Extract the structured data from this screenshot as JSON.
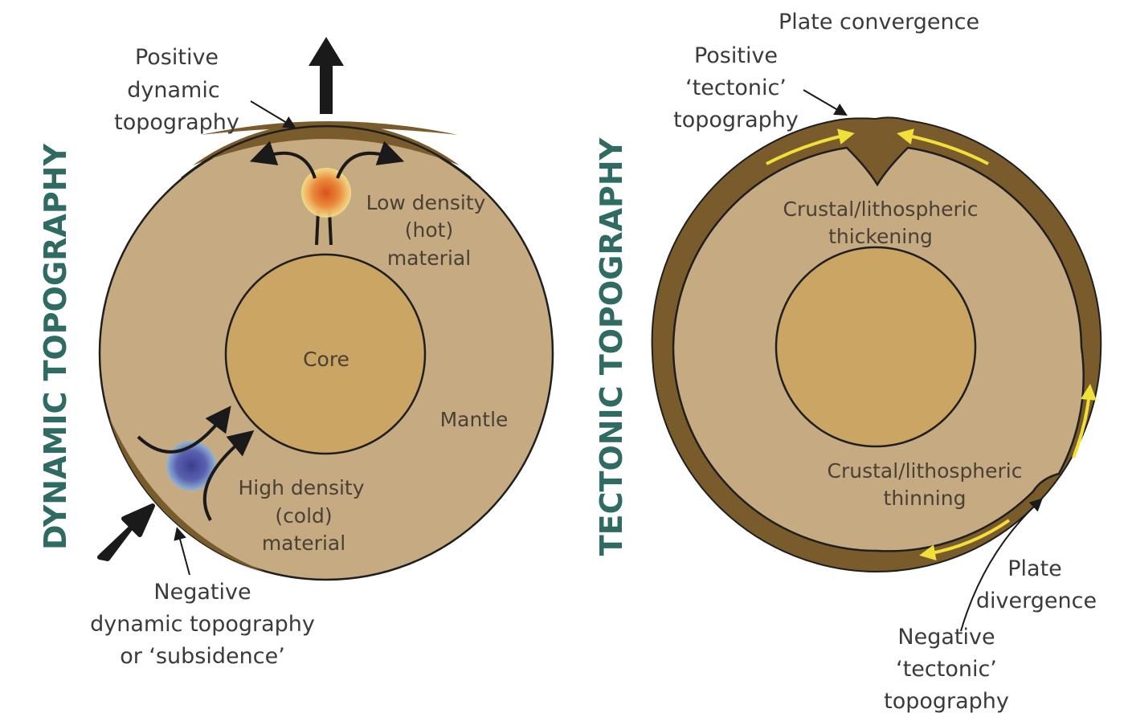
{
  "colors": {
    "mantle": "#c5aa82",
    "core": "#caa564",
    "crust": "#7a5c2c",
    "side_title": "#2f6b63",
    "hot": "#e06a2a",
    "cold": "#5a5aa8",
    "flow_arrow": "#f2e03a"
  },
  "dynamic": {
    "side_title": "DYNAMIC TOPOGRAPHY",
    "positive": [
      "Positive",
      "dynamic",
      "topography"
    ],
    "low_density": [
      "Low density",
      "(hot)",
      "material"
    ],
    "core": "Core",
    "mantle": "Mantle",
    "high_density": [
      "High density",
      "(cold)",
      "material"
    ],
    "negative": [
      "Negative",
      "dynamic topography",
      "or ‘subsidence’"
    ]
  },
  "tectonic": {
    "side_title": "TECTONIC TOPOGRAPHY",
    "convergence": "Plate convergence",
    "positive": [
      "Positive",
      "‘tectonic’",
      "topography"
    ],
    "thickening": [
      "Crustal/lithospheric",
      "thickening"
    ],
    "thinning": [
      "Crustal/lithospheric",
      "thinning"
    ],
    "divergence": [
      "Plate",
      "divergence"
    ],
    "negative": [
      "Negative",
      "‘tectonic’",
      "topography"
    ]
  }
}
